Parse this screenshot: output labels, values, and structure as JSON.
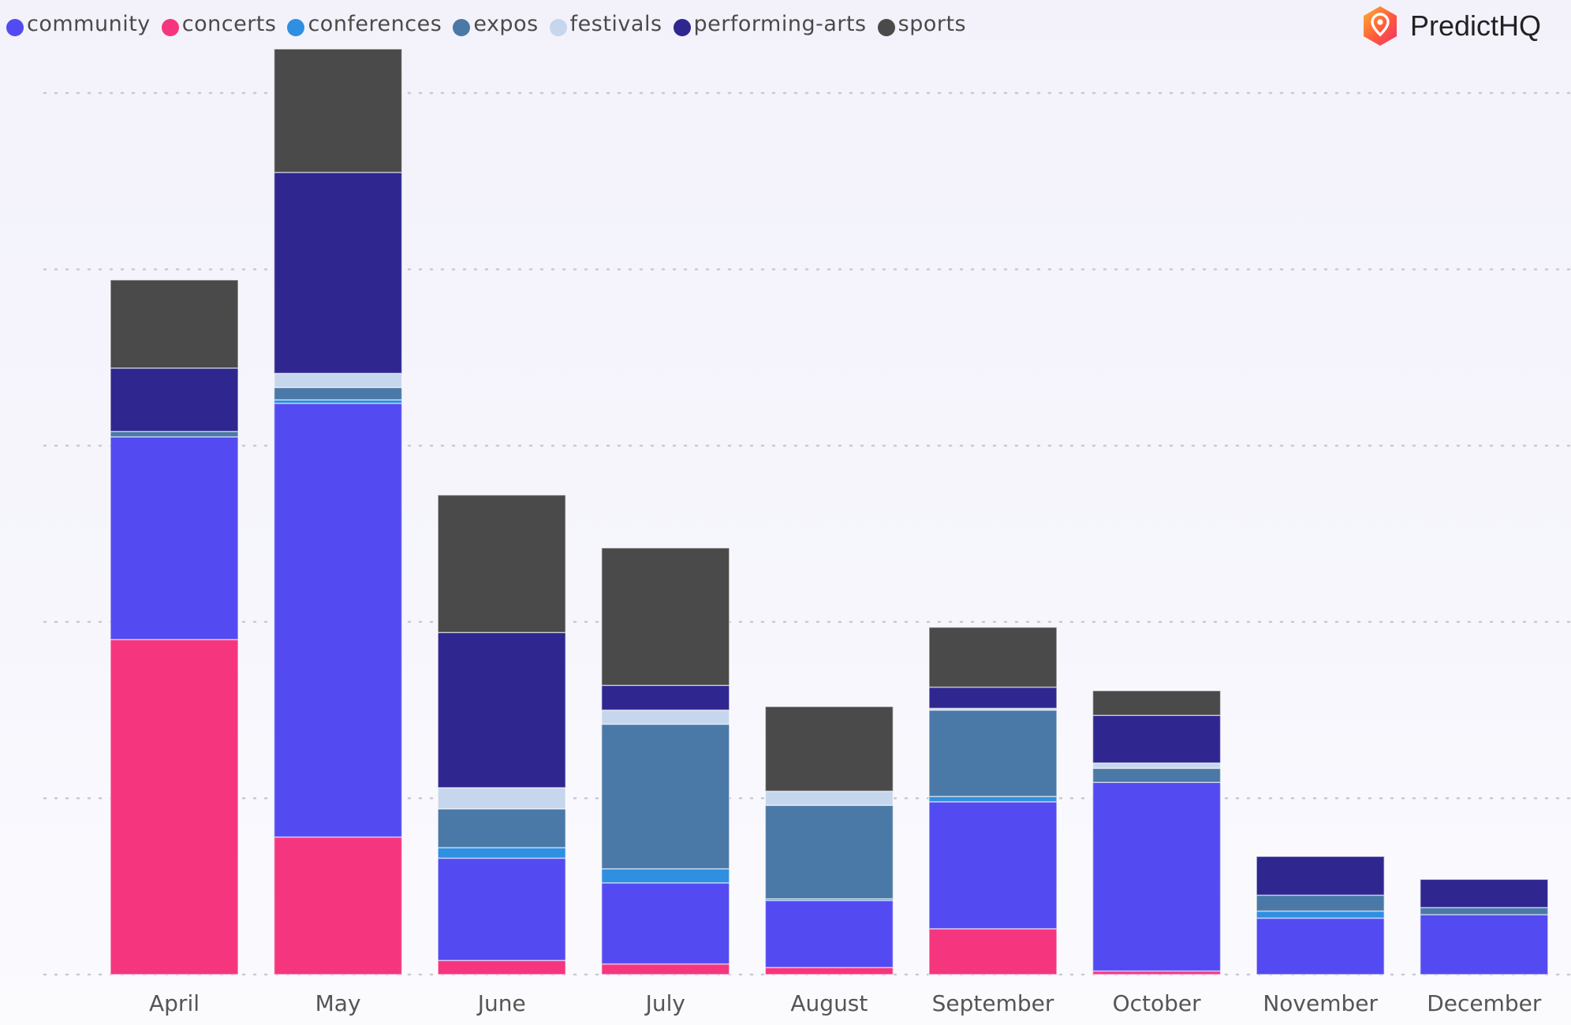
{
  "brand": {
    "name": "PredictHQ"
  },
  "colors": {
    "community": "#534bf1",
    "concerts": "#f5367f",
    "conferences": "#2f8fe0",
    "expos": "#4a79a7",
    "festivals": "#c6d6ec",
    "performing-arts": "#2f278f",
    "sports": "#4a4a4a"
  },
  "chart_data": {
    "type": "bar",
    "stacked": true,
    "title": "",
    "xlabel": "",
    "ylabel": "",
    "ylim": [
      0,
      5.2
    ],
    "grid": true,
    "legend_position": "top-left",
    "categories": [
      "April",
      "May",
      "June",
      "July",
      "August",
      "September",
      "October",
      "November",
      "December"
    ],
    "series": [
      {
        "name": "concerts",
        "values": [
          1.9,
          0.78,
          0.08,
          0.06,
          0.04,
          0.26,
          0.02,
          0.0,
          0.0
        ]
      },
      {
        "name": "community",
        "values": [
          1.15,
          2.46,
          0.58,
          0.46,
          0.38,
          0.72,
          1.07,
          0.32,
          0.34
        ]
      },
      {
        "name": "conferences",
        "values": [
          0.0,
          0.02,
          0.06,
          0.08,
          0.01,
          0.03,
          0.0,
          0.04,
          0.0
        ]
      },
      {
        "name": "expos",
        "values": [
          0.03,
          0.07,
          0.22,
          0.82,
          0.53,
          0.49,
          0.08,
          0.09,
          0.04
        ]
      },
      {
        "name": "festivals",
        "values": [
          0.0,
          0.08,
          0.12,
          0.08,
          0.08,
          0.01,
          0.03,
          0.0,
          0.0
        ]
      },
      {
        "name": "performing-arts",
        "values": [
          0.36,
          1.14,
          0.88,
          0.14,
          0.0,
          0.12,
          0.27,
          0.22,
          0.16
        ]
      },
      {
        "name": "sports",
        "values": [
          0.5,
          0.7,
          0.78,
          0.78,
          0.48,
          0.34,
          0.14,
          0.0,
          0.0
        ]
      }
    ]
  }
}
